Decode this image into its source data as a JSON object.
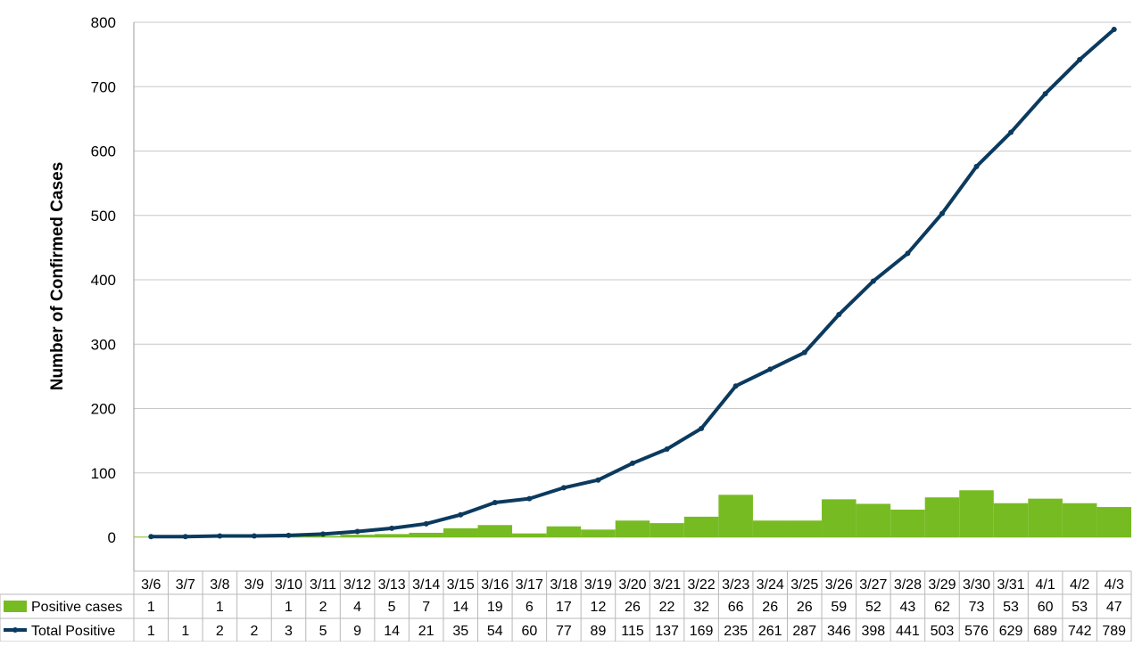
{
  "chart_data": {
    "type": "bar",
    "title": "",
    "xlabel": "",
    "ylabel": "Number of Confirmed Cases",
    "ylim": [
      0,
      800
    ],
    "yticks": [
      0,
      100,
      200,
      300,
      400,
      500,
      600,
      700,
      800
    ],
    "grid": true,
    "legend": "left side of data table",
    "categories": [
      "3/6",
      "3/7",
      "3/8",
      "3/9",
      "3/10",
      "3/11",
      "3/12",
      "3/13",
      "3/14",
      "3/15",
      "3/16",
      "3/17",
      "3/18",
      "3/19",
      "3/20",
      "3/21",
      "3/22",
      "3/23",
      "3/24",
      "3/25",
      "3/26",
      "3/27",
      "3/28",
      "3/29",
      "3/30",
      "3/31",
      "4/1",
      "4/2",
      "4/3"
    ],
    "series": [
      {
        "name": "Positive cases",
        "type": "bar",
        "color": "#77bb22",
        "values": [
          1,
          null,
          1,
          null,
          1,
          2,
          4,
          5,
          7,
          14,
          19,
          6,
          17,
          12,
          26,
          22,
          32,
          66,
          26,
          26,
          59,
          52,
          43,
          62,
          73,
          53,
          60,
          53,
          47
        ]
      },
      {
        "name": "Total Positive",
        "type": "line",
        "color": "#0b3a5e",
        "values": [
          1,
          1,
          2,
          2,
          3,
          5,
          9,
          14,
          21,
          35,
          54,
          60,
          77,
          89,
          115,
          137,
          169,
          235,
          261,
          287,
          346,
          398,
          441,
          503,
          576,
          629,
          689,
          742,
          789
        ]
      }
    ]
  }
}
